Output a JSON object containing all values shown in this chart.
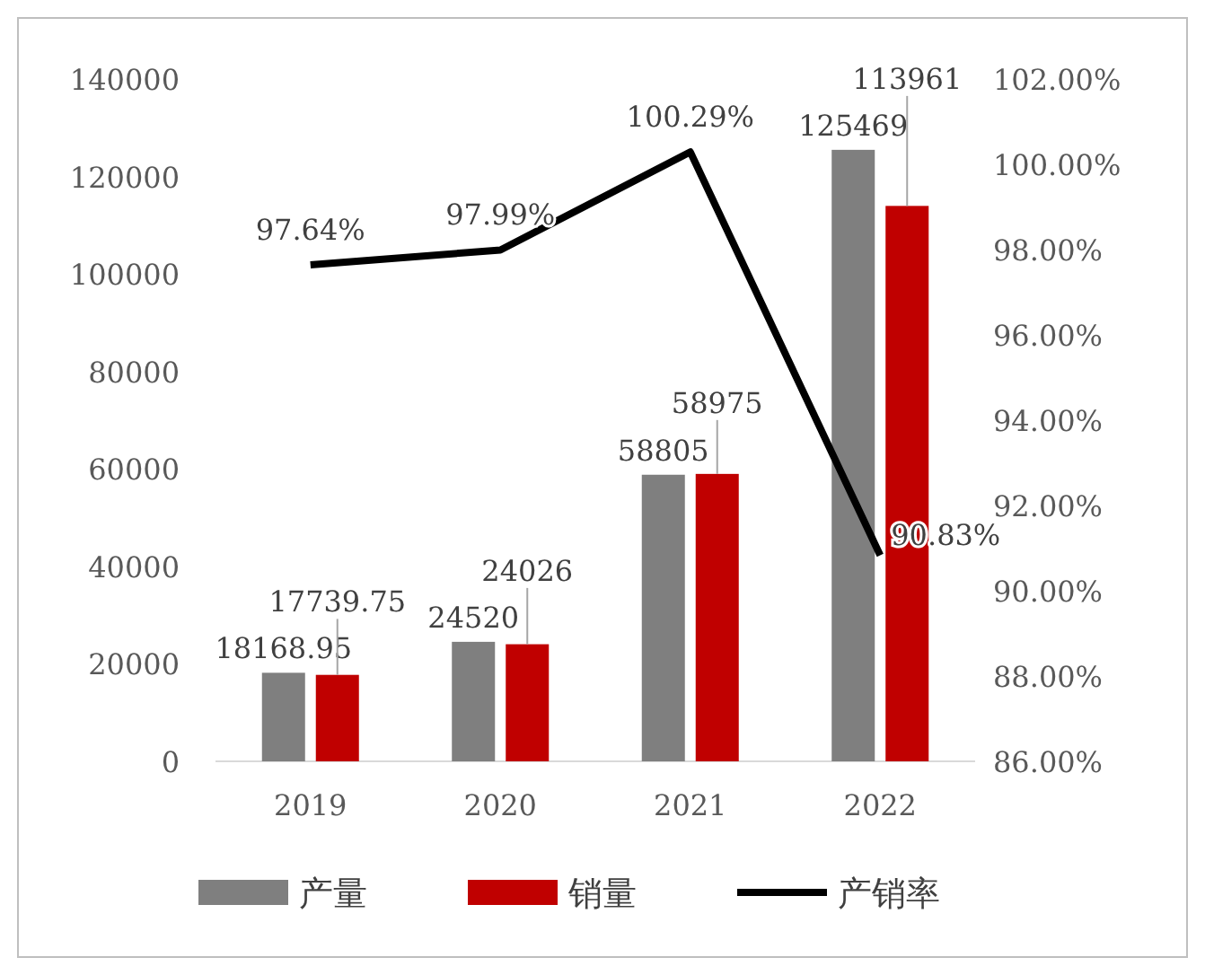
{
  "chart_data": {
    "type": "bar",
    "categories": [
      "2019",
      "2020",
      "2021",
      "2022"
    ],
    "series": [
      {
        "name": "产量",
        "color": "#7f7f7f",
        "values": [
          18168.95,
          24520,
          58805,
          125469
        ],
        "value_labels": [
          "18168.95",
          "24520",
          "58805",
          "125469"
        ]
      },
      {
        "name": "销量",
        "color": "#c00000",
        "values": [
          17739.75,
          24026,
          58975,
          113961
        ],
        "value_labels": [
          "17739.75",
          "24026",
          "58975",
          "113961"
        ]
      },
      {
        "name": "产销率",
        "type": "line",
        "axis": "y2",
        "color": "#000000",
        "values": [
          97.64,
          97.99,
          100.29,
          90.83
        ],
        "value_labels": [
          "97.64%",
          "97.99%",
          "100.29%",
          "90.83%"
        ]
      }
    ],
    "ylim": [
      0,
      140000
    ],
    "yticks": [
      0,
      20000,
      40000,
      60000,
      80000,
      100000,
      120000,
      140000
    ],
    "y2lim": [
      86,
      102
    ],
    "y2ticks": [
      {
        "value": 86,
        "label": "86.00%"
      },
      {
        "value": 88,
        "label": "88.00%"
      },
      {
        "value": 90,
        "label": "90.00%"
      },
      {
        "value": 92,
        "label": "92.00%"
      },
      {
        "value": 94,
        "label": "94.00%"
      },
      {
        "value": 96,
        "label": "96.00%"
      },
      {
        "value": 98,
        "label": "98.00%"
      },
      {
        "value": 100,
        "label": "100.00%"
      },
      {
        "value": 102,
        "label": "102.00%"
      }
    ],
    "grid": false,
    "legend": "bottom",
    "marker": "none",
    "line_style": "solid"
  }
}
